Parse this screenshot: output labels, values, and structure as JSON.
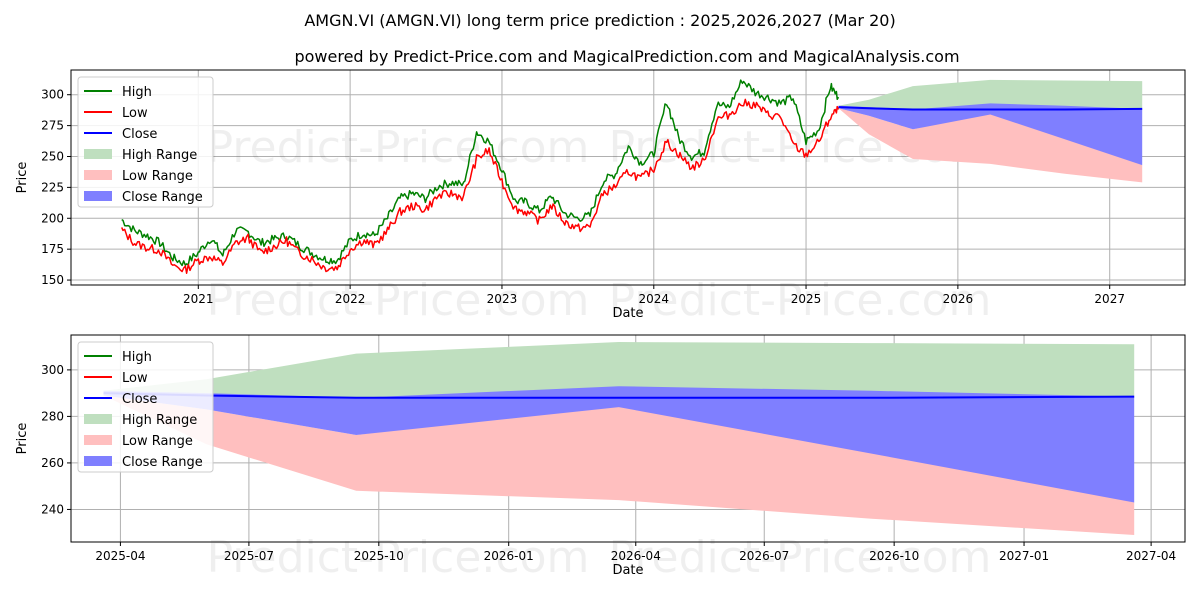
{
  "title": "AMGN.VI (AMGN.VI) long term price prediction : 2025,2026,2027 (Mar 20)",
  "subtitle": "powered by Predict-Price.com and MagicalPrediction.com and MagicalAnalysis.com",
  "watermark": "Predict-Price.com",
  "colors": {
    "high": "#008000",
    "low": "#ff0000",
    "close": "#0000ff",
    "high_range": "#bfdfbf",
    "low_range": "#ffbfbf",
    "close_range": "#7f7fff"
  },
  "chart_data": [
    {
      "type": "line",
      "xlabel": "Date",
      "ylabel": "Price",
      "xlim": [
        "2020-03-01",
        "2027-07-01"
      ],
      "ylim": [
        146,
        320
      ],
      "x_ticks": [
        "2021",
        "2022",
        "2023",
        "2024",
        "2025",
        "2026",
        "2027"
      ],
      "x_tick_dates": [
        "2021-01-01",
        "2022-01-01",
        "2023-01-01",
        "2024-01-01",
        "2025-01-01",
        "2026-01-01",
        "2027-01-01"
      ],
      "y_ticks": [
        150,
        175,
        200,
        225,
        250,
        275,
        300
      ],
      "grid": true,
      "legend_position": "top-left",
      "legend": [
        "High",
        "Low",
        "Close",
        "High Range",
        "Low Range",
        "Close Range"
      ],
      "historical_dates": [
        "2020-07-01",
        "2020-08-01",
        "2020-09-01",
        "2020-10-01",
        "2020-11-01",
        "2020-12-01",
        "2021-01-01",
        "2021-02-01",
        "2021-03-01",
        "2021-04-01",
        "2021-05-01",
        "2021-06-01",
        "2021-07-01",
        "2021-08-01",
        "2021-09-01",
        "2021-10-01",
        "2021-11-01",
        "2021-12-01",
        "2022-01-01",
        "2022-02-01",
        "2022-03-01",
        "2022-04-01",
        "2022-05-01",
        "2022-06-01",
        "2022-07-01",
        "2022-08-01",
        "2022-09-01",
        "2022-10-01",
        "2022-11-01",
        "2022-12-01",
        "2023-01-01",
        "2023-02-01",
        "2023-03-01",
        "2023-04-01",
        "2023-05-01",
        "2023-06-01",
        "2023-07-01",
        "2023-08-01",
        "2023-09-01",
        "2023-10-01",
        "2023-11-01",
        "2023-12-01",
        "2024-01-01",
        "2024-02-01",
        "2024-03-01",
        "2024-04-01",
        "2024-05-01",
        "2024-06-01",
        "2024-07-01",
        "2024-08-01",
        "2024-09-01",
        "2024-10-01",
        "2024-11-01",
        "2024-12-01",
        "2025-01-01",
        "2025-02-01",
        "2025-03-01",
        "2025-03-20"
      ],
      "historical_low": [
        191,
        180,
        176,
        174,
        162,
        158,
        166,
        169,
        163,
        180,
        184,
        172,
        177,
        182,
        172,
        167,
        160,
        160,
        175,
        182,
        178,
        190,
        205,
        210,
        207,
        218,
        220,
        217,
        248,
        255,
        230,
        208,
        205,
        198,
        210,
        197,
        192,
        193,
        220,
        226,
        238,
        232,
        240,
        262,
        252,
        241,
        246,
        280,
        284,
        293,
        292,
        284,
        282,
        260,
        251,
        262,
        282,
        288
      ],
      "historical_high": [
        199,
        190,
        186,
        180,
        168,
        163,
        172,
        184,
        170,
        190,
        189,
        180,
        183,
        186,
        178,
        172,
        167,
        166,
        182,
        188,
        186,
        200,
        216,
        220,
        216,
        226,
        229,
        227,
        270,
        262,
        240,
        214,
        213,
        206,
        218,
        204,
        200,
        202,
        230,
        236,
        258,
        245,
        252,
        295,
        265,
        250,
        254,
        292,
        290,
        312,
        302,
        298,
        293,
        298,
        262,
        272,
        307,
        298
      ],
      "forecast": {
        "x": [
          "2025-03-20",
          "2025-06-01",
          "2025-09-15",
          "2026-03-20",
          "2026-09-15",
          "2027-03-20"
        ],
        "close": [
          290,
          289,
          288,
          288,
          288,
          288.5
        ],
        "close_range_upper": [
          291,
          290,
          288,
          293,
          291,
          288.5
        ],
        "close_range_lower": [
          289,
          283,
          272,
          284,
          264,
          243
        ],
        "high_range_upper": [
          291,
          296,
          307,
          312,
          311.5,
          311
        ],
        "high_range_lower": [
          289,
          289,
          288,
          288,
          288,
          288.5
        ],
        "low_range_upper": [
          289,
          283,
          272,
          286,
          268,
          243
        ],
        "low_range_lower": [
          289,
          268,
          248,
          244,
          236,
          229
        ]
      }
    },
    {
      "type": "area",
      "xlabel": "Date",
      "ylabel": "Price",
      "xlim": [
        "2025-02-25",
        "2027-04-25"
      ],
      "ylim": [
        226,
        315
      ],
      "x_ticks": [
        "2025-04",
        "2025-07",
        "2025-10",
        "2026-01",
        "2026-04",
        "2026-07",
        "2026-10",
        "2027-01",
        "2027-04"
      ],
      "x_tick_dates": [
        "2025-04-01",
        "2025-07-01",
        "2025-10-01",
        "2026-01-01",
        "2026-04-01",
        "2026-07-01",
        "2026-10-01",
        "2027-01-01",
        "2027-04-01"
      ],
      "y_ticks": [
        240,
        260,
        280,
        300
      ],
      "grid": true,
      "legend_position": "top-left",
      "legend": [
        "High",
        "Low",
        "Close",
        "High Range",
        "Low Range",
        "Close Range"
      ]
    }
  ]
}
